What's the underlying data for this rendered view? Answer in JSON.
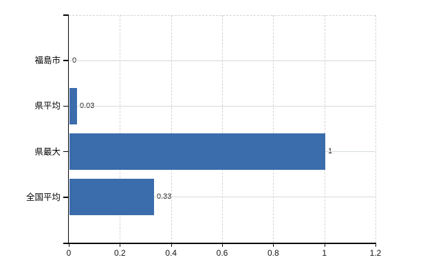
{
  "chart_data": {
    "type": "bar",
    "orientation": "horizontal",
    "title": "",
    "xlabel": "",
    "ylabel": "",
    "categories": [
      "福島市",
      "県平均",
      "県最大",
      "全国平均"
    ],
    "values": [
      0,
      0.03,
      1,
      0.33
    ],
    "value_labels": [
      "0",
      "0.03",
      "1",
      "0.33"
    ],
    "x_ticks": [
      0,
      0.2,
      0.4,
      0.6,
      0.8,
      1,
      1.2
    ],
    "x_tick_labels": [
      "0",
      "0.2",
      "0.4",
      "0.6",
      "0.8",
      "1",
      "1.2"
    ],
    "xlim": [
      0,
      1.2
    ],
    "legend": "none",
    "grid": {
      "horizontal": "solid",
      "vertical": "dashed"
    },
    "colors": {
      "bar": "#3b6cab",
      "h_gridline": "#d4dcd4",
      "v_gridline": "#d6d0d0",
      "axis": "#000000",
      "text": "#111111",
      "background": "#ffffff"
    }
  }
}
